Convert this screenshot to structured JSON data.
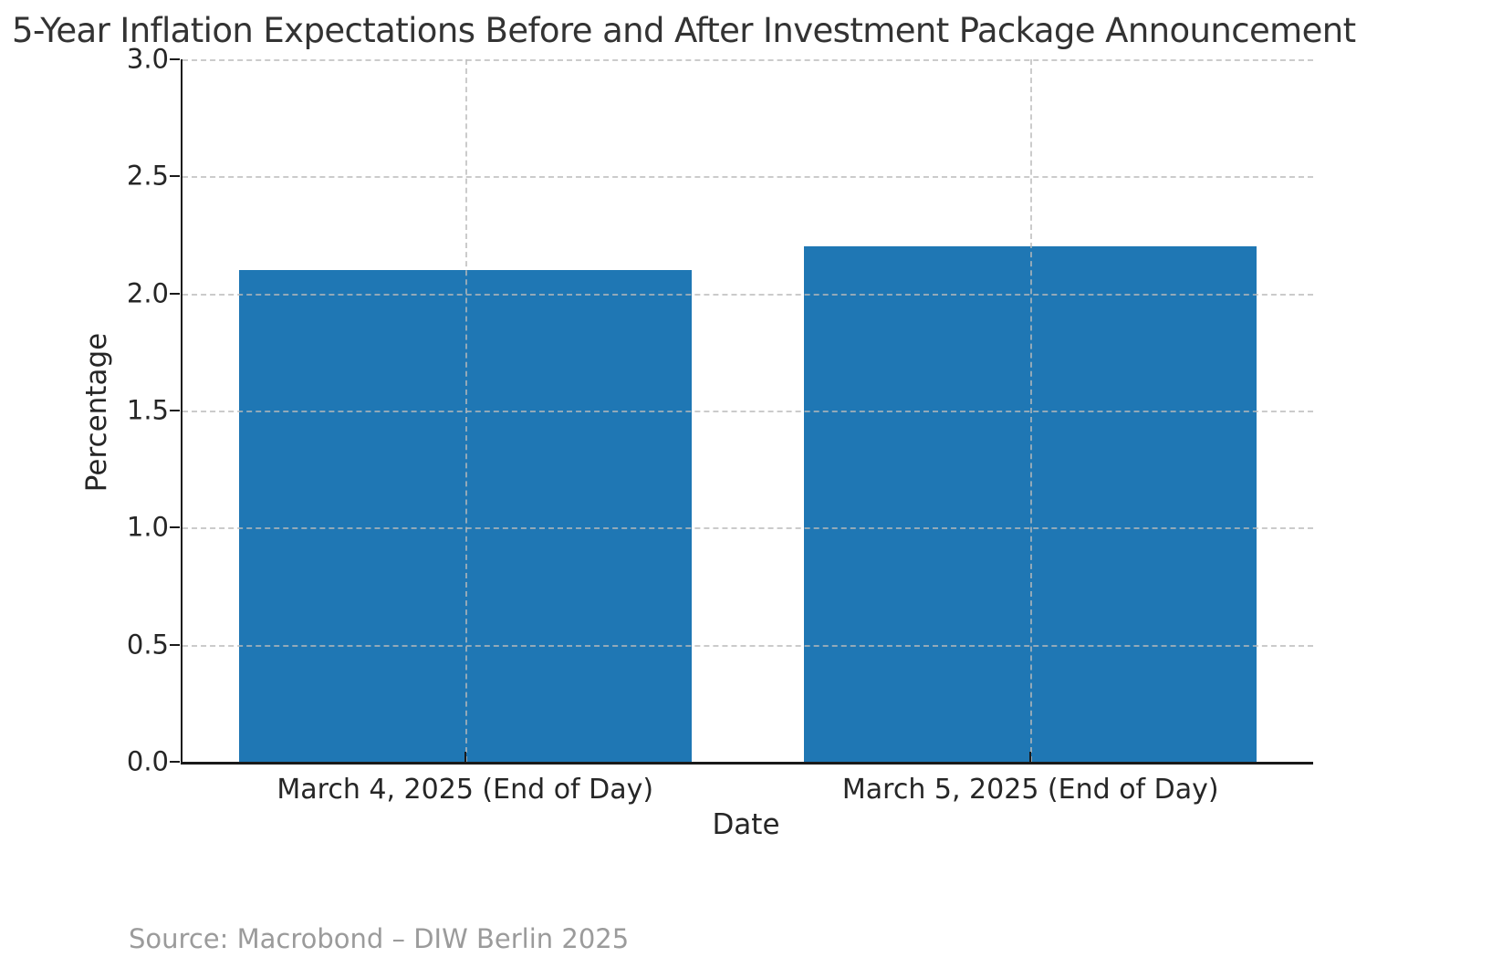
{
  "chart_data": {
    "type": "bar",
    "title": "5-Year Inflation Expectations Before and After Investment Package Announcement",
    "xlabel": "Date",
    "ylabel": "Percentage",
    "categories": [
      "March 4, 2025 (End of Day)",
      "March 5, 2025 (End of Day)"
    ],
    "values": [
      2.1,
      2.2
    ],
    "ylim": [
      0.0,
      3.0
    ],
    "yticks": [
      0.0,
      0.5,
      1.0,
      1.5,
      2.0,
      2.5,
      3.0
    ],
    "bar_width_fraction": 0.8,
    "grid": "on",
    "grid_style": "dashed",
    "grid_above_bars": true,
    "vertical_gridlines_at_category_centers": true,
    "legend": "none",
    "bar_color": "#1f77b4",
    "grid_color": "#b9b9b9",
    "spine_color": "#1a1a1a",
    "tick_label_color": "#262626",
    "title_color": "#333333"
  },
  "source_note": "Source: Macrobond – DIW Berlin 2025",
  "source_color": "#9b9b9b"
}
